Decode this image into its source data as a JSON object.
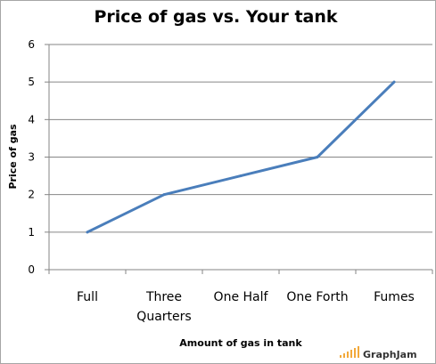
{
  "chart_data": {
    "type": "line",
    "title": "Price of gas vs. Your tank",
    "xlabel": "Amount of gas in tank",
    "ylabel": "Price of gas",
    "categories": [
      "Full",
      "Three Quarters",
      "One Half",
      "One Forth",
      "Fumes"
    ],
    "category_lines": [
      [
        "Full"
      ],
      [
        "Three",
        "Quarters"
      ],
      [
        "One Half"
      ],
      [
        "One Forth"
      ],
      [
        "Fumes"
      ]
    ],
    "series": [
      {
        "values": [
          1,
          2,
          2.5,
          3,
          5
        ],
        "color": "#4a7ebb"
      }
    ],
    "ylim": [
      0,
      6
    ],
    "yticks": [
      "0",
      "1",
      "2",
      "3",
      "4",
      "5",
      "6"
    ],
    "grid": true,
    "legend": "none"
  },
  "watermark": {
    "text": "GraphJam",
    "color": "#f2a93b"
  }
}
